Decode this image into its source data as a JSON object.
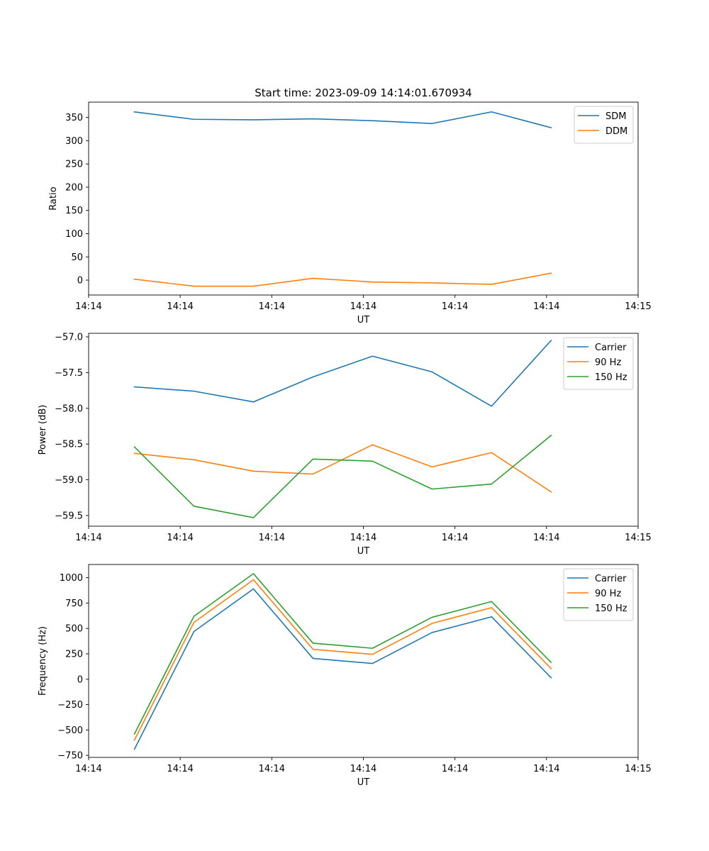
{
  "figure": {
    "title": "Start time: 2023-09-09 14:14:01.670934"
  },
  "chart_data": [
    {
      "type": "line",
      "title": "Start time: 2023-09-09 14:14:01.670934",
      "xlabel": "UT",
      "ylabel": "Ratio",
      "xlim": [
        0,
        6
      ],
      "ylim": [
        -32,
        383
      ],
      "x": [
        0.5,
        1.15,
        1.8,
        2.45,
        3.1,
        3.75,
        4.4,
        5.05
      ],
      "xticks": [
        0,
        1,
        2,
        3,
        4,
        5,
        6
      ],
      "xtick_labels": [
        "14:14",
        "14:14",
        "14:14",
        "14:14",
        "14:14",
        "14:14",
        "14:15"
      ],
      "yticks": [
        0,
        50,
        100,
        150,
        200,
        250,
        300,
        350
      ],
      "ytick_labels": [
        "0",
        "50",
        "100",
        "150",
        "200",
        "250",
        "300",
        "350"
      ],
      "legend_position": "top-right",
      "series": [
        {
          "name": "SDM",
          "color": "#1f77b4",
          "values": [
            362,
            346,
            345,
            347,
            343,
            337,
            362,
            328
          ]
        },
        {
          "name": "DDM",
          "color": "#ff7f0e",
          "values": [
            2,
            -13,
            -13,
            4,
            -4,
            -6,
            -9,
            15
          ]
        }
      ]
    },
    {
      "type": "line",
      "title": "",
      "xlabel": "UT",
      "ylabel": "Power (dB)",
      "xlim": [
        0,
        6
      ],
      "ylim": [
        -59.65,
        -56.95
      ],
      "x": [
        0.5,
        1.15,
        1.8,
        2.45,
        3.1,
        3.75,
        4.4,
        5.05
      ],
      "xticks": [
        0,
        1,
        2,
        3,
        4,
        5,
        6
      ],
      "xtick_labels": [
        "14:14",
        "14:14",
        "14:14",
        "14:14",
        "14:14",
        "14:14",
        "14:15"
      ],
      "yticks": [
        -59.5,
        -59.0,
        -58.5,
        -58.0,
        -57.5,
        -57.0
      ],
      "ytick_labels": [
        "−59.5",
        "−59.0",
        "−58.5",
        "−58.0",
        "−57.5",
        "−57.0"
      ],
      "legend_position": "top-right",
      "series": [
        {
          "name": "Carrier",
          "color": "#1f77b4",
          "values": [
            -57.7,
            -57.76,
            -57.91,
            -57.56,
            -57.27,
            -57.49,
            -57.97,
            -57.05
          ]
        },
        {
          "name": "90 Hz",
          "color": "#ff7f0e",
          "values": [
            -58.63,
            -58.72,
            -58.88,
            -58.92,
            -58.51,
            -58.82,
            -58.62,
            -59.17
          ]
        },
        {
          "name": "150 Hz",
          "color": "#2ca02c",
          "values": [
            -58.54,
            -59.37,
            -59.53,
            -58.71,
            -58.74,
            -59.13,
            -59.06,
            -58.38
          ]
        }
      ]
    },
    {
      "type": "line",
      "title": "",
      "xlabel": "UT",
      "ylabel": "Frequency (Hz)",
      "xlim": [
        0,
        6
      ],
      "ylim": [
        -770,
        1130
      ],
      "x": [
        0.5,
        1.15,
        1.8,
        2.45,
        3.1,
        3.75,
        4.4,
        5.05
      ],
      "xticks": [
        0,
        1,
        2,
        3,
        4,
        5,
        6
      ],
      "xtick_labels": [
        "14:14",
        "14:14",
        "14:14",
        "14:14",
        "14:14",
        "14:14",
        "14:15"
      ],
      "yticks": [
        -750,
        -500,
        -250,
        0,
        250,
        500,
        750,
        1000
      ],
      "ytick_labels": [
        "−750",
        "−500",
        "−250",
        "0",
        "250",
        "500",
        "750",
        "1000"
      ],
      "legend_position": "top-right",
      "series": [
        {
          "name": "Carrier",
          "color": "#1f77b4",
          "values": [
            -690,
            470,
            890,
            205,
            155,
            460,
            615,
            15
          ]
        },
        {
          "name": "90 Hz",
          "color": "#ff7f0e",
          "values": [
            -600,
            560,
            980,
            295,
            245,
            550,
            705,
            105
          ]
        },
        {
          "name": "150 Hz",
          "color": "#2ca02c",
          "values": [
            -540,
            620,
            1040,
            355,
            305,
            610,
            765,
            165
          ]
        }
      ]
    }
  ]
}
